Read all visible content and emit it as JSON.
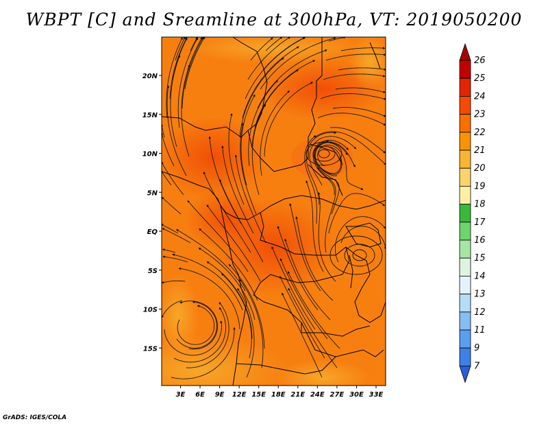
{
  "title": "WBPT [C] and Sreamline at 300hPa, VT: 2019050200",
  "credit": "GrADS: IGES/COLA",
  "map": {
    "lon_labels": [
      "3E",
      "6E",
      "9E",
      "12E",
      "15E",
      "18E",
      "21E",
      "24E",
      "27E",
      "30E",
      "33E"
    ],
    "lat_labels": [
      "20N",
      "15N",
      "10N",
      "5N",
      "EQ",
      "5S",
      "10S",
      "15S"
    ],
    "lon_range": [
      0,
      35
    ],
    "lat_range": [
      -20,
      24
    ],
    "field": "wet-bulb potential temperature",
    "overlay": "streamlines"
  },
  "colorbar": {
    "levels": [
      "26",
      "25",
      "24",
      "23",
      "22",
      "21",
      "20",
      "19",
      "18",
      "17",
      "16",
      "15",
      "14",
      "13",
      "12",
      "11",
      "9",
      "7"
    ],
    "colors": [
      "#a50000",
      "#c20000",
      "#e32400",
      "#f54a00",
      "#f96f00",
      "#f99300",
      "#f9b532",
      "#fad46b",
      "#fdf0a6",
      "#3ab83a",
      "#6fd36f",
      "#a5e5a5",
      "#def4de",
      "#e4f2fb",
      "#b6dcf6",
      "#86bdf2",
      "#5a9eef",
      "#3f7fe8",
      "#2a5ed9"
    ]
  }
}
